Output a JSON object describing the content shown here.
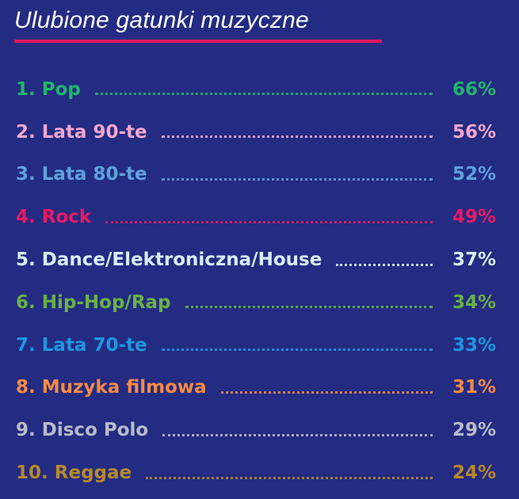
{
  "title": "Ulubione gatunki muzyczne",
  "accent_color": "#e3185f",
  "background_color": "#232b82",
  "chart_data": {
    "type": "table",
    "title": "Ulubione gatunki muzyczne",
    "rows": [
      {
        "rank": "1.",
        "label": "Pop",
        "value": 66,
        "display": "66%",
        "color": "#1fb66b"
      },
      {
        "rank": "2.",
        "label": "Lata 90-te",
        "value": 56,
        "display": "56%",
        "color": "#f4a6cf"
      },
      {
        "rank": "3.",
        "label": "Lata 80-te",
        "value": 52,
        "display": "52%",
        "color": "#5fa2dc"
      },
      {
        "rank": "4.",
        "label": "Rock",
        "value": 49,
        "display": "49%",
        "color": "#ea1a63"
      },
      {
        "rank": "5.",
        "label": "Dance/Elektroniczna/House",
        "value": 37,
        "display": "37%",
        "color": "#d9ecfb"
      },
      {
        "rank": "6.",
        "label": "Hip-Hop/Rap",
        "value": 34,
        "display": "34%",
        "color": "#6ab146"
      },
      {
        "rank": "7.",
        "label": "Lata 70-te",
        "value": 33,
        "display": "33%",
        "color": "#1e97e0"
      },
      {
        "rank": "8.",
        "label": "Muzyka filmowa",
        "value": 31,
        "display": "31%",
        "color": "#f58a45"
      },
      {
        "rank": "9.",
        "label": "Disco Polo",
        "value": 29,
        "display": "29%",
        "color": "#b8bcc8"
      },
      {
        "rank": "10.",
        "label": "Reggae",
        "value": 24,
        "display": "24%",
        "color": "#b6892a"
      }
    ]
  }
}
